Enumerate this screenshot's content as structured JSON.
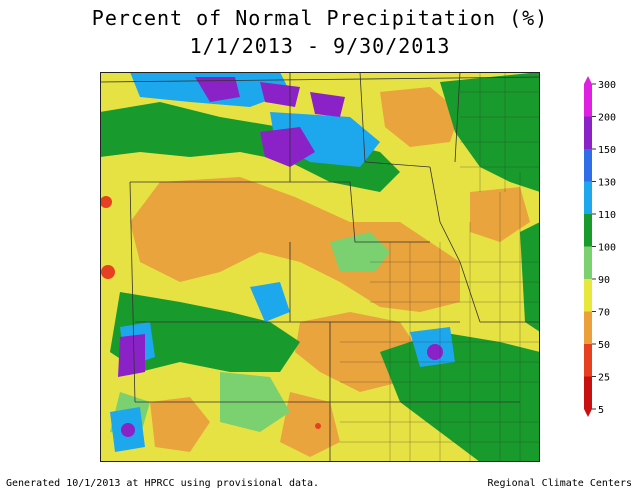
{
  "title": {
    "line1": "Percent of Normal Precipitation (%)",
    "line2": "1/1/2013 - 9/30/2013"
  },
  "legend": {
    "ticks": [
      "300",
      "200",
      "150",
      "130",
      "110",
      "100",
      "90",
      "70",
      "50",
      "25",
      "5"
    ],
    "bands": [
      {
        "from": "300",
        "to": "200",
        "color": "#e020e0"
      },
      {
        "from": "200",
        "to": "150",
        "color": "#8a22c8"
      },
      {
        "from": "150",
        "to": "130",
        "color": "#2f6ee8"
      },
      {
        "from": "130",
        "to": "110",
        "color": "#1da8ee"
      },
      {
        "from": "110",
        "to": "100",
        "color": "#189a2c"
      },
      {
        "from": "100",
        "to": "90",
        "color": "#7bd070"
      },
      {
        "from": "90",
        "to": "70",
        "color": "#e8e83c"
      },
      {
        "from": "70",
        "to": "50",
        "color": "#eba03c"
      },
      {
        "from": "50",
        "to": "25",
        "color": "#e64020"
      },
      {
        "from": "25",
        "to": "5",
        "color": "#c81010"
      }
    ]
  },
  "footer": {
    "left": "Generated 10/1/2013 at HPRCC using provisional data.",
    "right": "Regional Climate Centers"
  }
}
